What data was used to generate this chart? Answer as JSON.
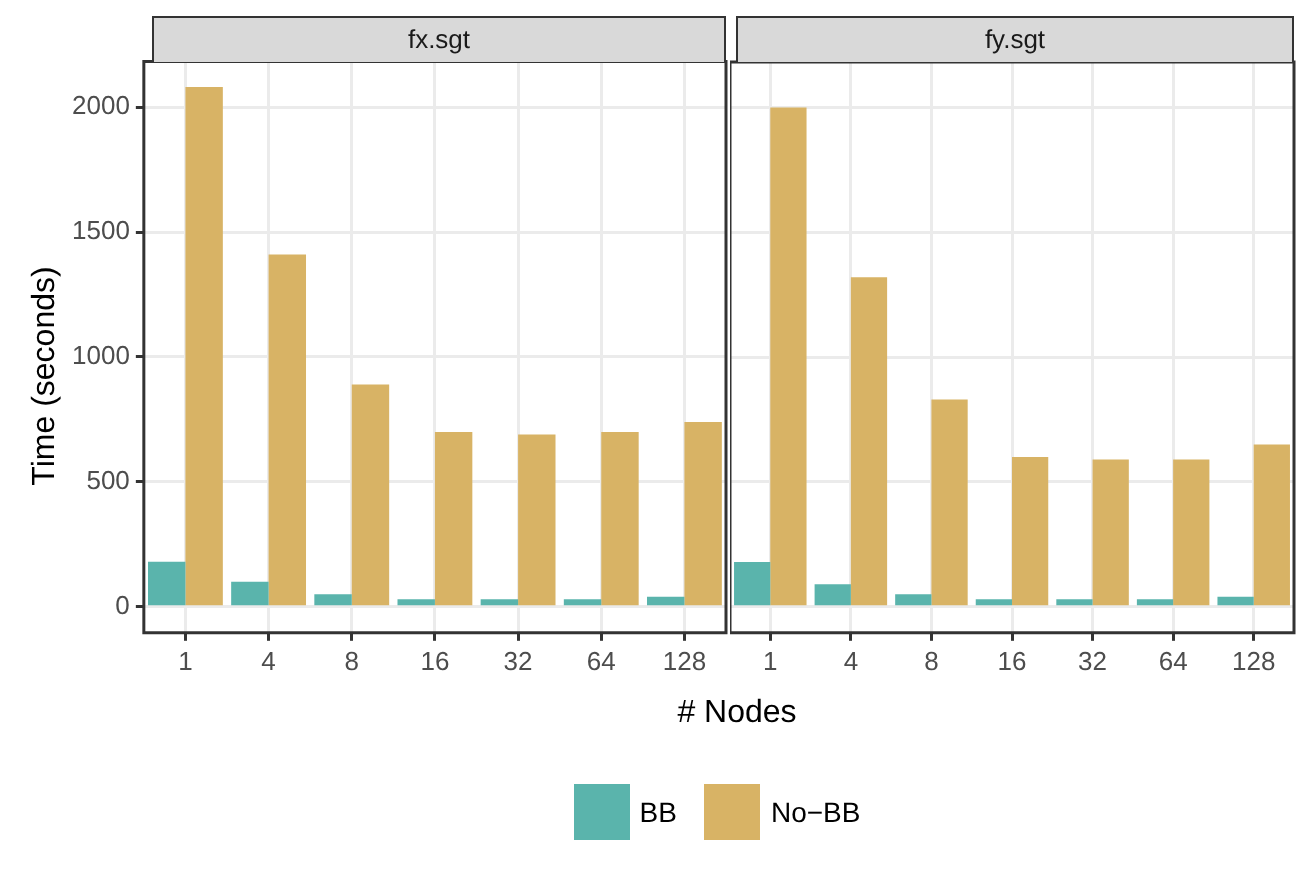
{
  "chart_data": [
    {
      "type": "bar",
      "title": "fx.sgt",
      "xlabel": "# Nodes",
      "ylabel": "Time (seconds)",
      "categories": [
        "1",
        "4",
        "8",
        "16",
        "32",
        "64",
        "128"
      ],
      "series": [
        {
          "name": "BB",
          "color": "#5ab4ac",
          "values": [
            180,
            100,
            50,
            30,
            30,
            30,
            40
          ]
        },
        {
          "name": "No−BB",
          "color": "#d8b365",
          "values": [
            2080,
            1410,
            890,
            700,
            690,
            700,
            740
          ]
        }
      ],
      "ylim": [
        -104,
        2182
      ],
      "yticks": [
        0,
        500,
        1000,
        1500,
        2000
      ],
      "grid": true,
      "legend": "bottom"
    },
    {
      "type": "bar",
      "title": "fy.sgt",
      "categories": [
        "1",
        "4",
        "8",
        "16",
        "32",
        "64",
        "128"
      ],
      "series": [
        {
          "color": "#5ab4ac",
          "values": [
            180,
            90,
            50,
            30,
            30,
            30,
            40
          ]
        },
        {
          "color": "#d8b365",
          "values": [
            2000,
            1320,
            830,
            600,
            590,
            590,
            650
          ]
        }
      ],
      "ylim": [
        -104,
        2182
      ],
      "yticks": [
        0,
        500,
        1000,
        1500,
        2000
      ],
      "grid": true,
      "tick_labels": "x"
    }
  ]
}
